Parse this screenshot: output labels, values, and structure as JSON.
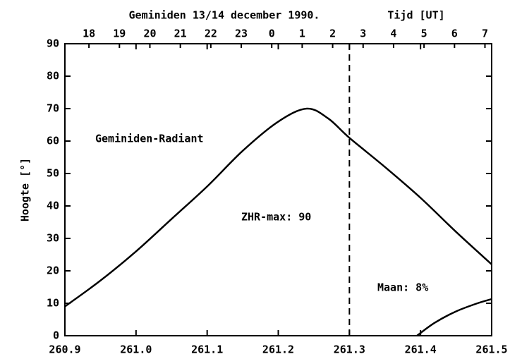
{
  "chart_data": {
    "type": "line",
    "title": "Geminiden 13/14 december 1990.",
    "x2label": "Tijd [UT]",
    "ylabel": "Hoogte [°]",
    "xlim": [
      260.9,
      261.5
    ],
    "xticks": [
      {
        "value": 260.9,
        "label": "260.9"
      },
      {
        "value": 261.0,
        "label": "261.0"
      },
      {
        "value": 261.1,
        "label": "261.1"
      },
      {
        "value": 261.2,
        "label": "261.2"
      },
      {
        "value": 261.3,
        "label": "261.3"
      },
      {
        "value": 261.4,
        "label": "261.4"
      },
      {
        "value": 261.5,
        "label": "261.5"
      }
    ],
    "x2lim": [
      17.21,
      31.22
    ],
    "x2ticks": [
      18,
      19,
      20,
      21,
      22,
      23,
      {
        "value": 24,
        "label": "0"
      },
      {
        "value": 25,
        "label": "1"
      },
      {
        "value": 26,
        "label": "2"
      },
      {
        "value": 27,
        "label": "3"
      },
      {
        "value": 28,
        "label": "4"
      },
      {
        "value": 29,
        "label": "5"
      },
      {
        "value": 30,
        "label": "6"
      },
      {
        "value": 31,
        "label": "7"
      }
    ],
    "ylim": [
      0,
      90
    ],
    "yticks": [
      0,
      10,
      20,
      30,
      40,
      50,
      60,
      70,
      80,
      90
    ],
    "series": [
      {
        "name": "Geminiden-Radiant",
        "color": "#000000",
        "x": [
          260.9,
          260.95,
          261.0,
          261.05,
          261.1,
          261.15,
          261.2,
          261.24,
          261.27,
          261.3,
          261.35,
          261.4,
          261.45,
          261.5
        ],
        "values": [
          9,
          17,
          26,
          36,
          46,
          57,
          66,
          70,
          67,
          61,
          52,
          42.5,
          32,
          22
        ]
      },
      {
        "color": "#000000",
        "x": [
          261.395,
          261.42,
          261.45,
          261.48,
          261.5
        ],
        "values": [
          0,
          4,
          7.5,
          10,
          11.3
        ]
      }
    ],
    "vline": 261.3,
    "annotations": [
      "ZHR-max: 90",
      "Maan: 8%"
    ]
  }
}
